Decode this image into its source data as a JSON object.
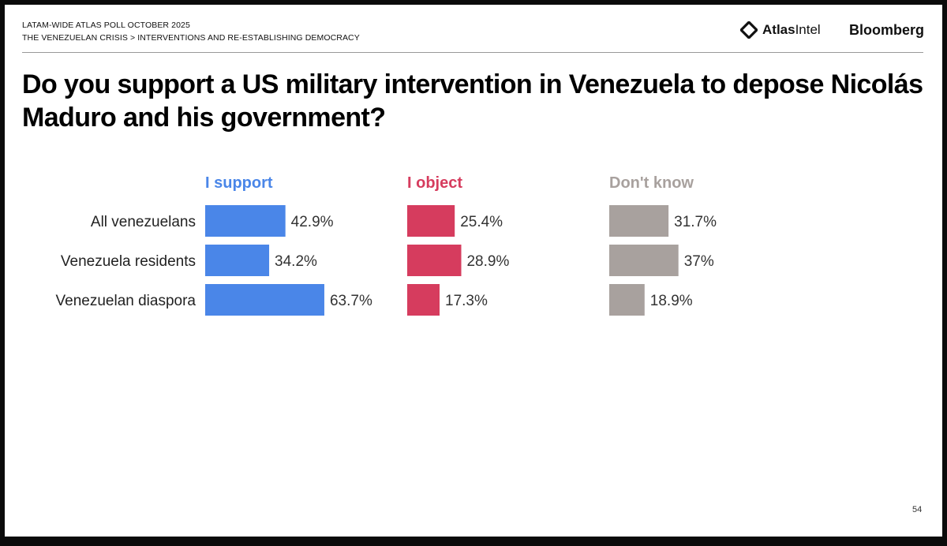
{
  "header": {
    "line1": "LATAM-WIDE ATLAS POLL OCTOBER 2025",
    "line2": "THE VENEZUELAN CRISIS > INTERVENTIONS AND RE-ESTABLISHING DEMOCRACY"
  },
  "logos": {
    "atlas_bold": "Atlas",
    "atlas_light": "Intel",
    "bloomberg": "Bloomberg"
  },
  "footer": {
    "page_number": "54"
  },
  "chart_data": {
    "type": "bar",
    "orientation": "horizontal",
    "title": "Do you support a US military intervention in Venezuela to depose Nicolás Maduro and his government?",
    "categories": [
      "All venezuelans",
      "Venezuela residents",
      "Venezuelan diaspora"
    ],
    "series": [
      {
        "name": "I support",
        "color": "#4a86e8",
        "values": [
          42.9,
          34.2,
          63.7
        ],
        "labels": [
          "42.9%",
          "34.2%",
          "63.7%"
        ]
      },
      {
        "name": "I object",
        "color": "#d63c5e",
        "values": [
          25.4,
          28.9,
          17.3
        ],
        "labels": [
          "25.4%",
          "28.9%",
          "17.3%"
        ]
      },
      {
        "name": "Don't know",
        "color": "#a8a19e",
        "values": [
          31.7,
          37,
          18.9
        ],
        "labels": [
          "31.7%",
          "37%",
          "18.9%"
        ]
      }
    ],
    "xlim": [
      0,
      100
    ],
    "grid": false
  }
}
